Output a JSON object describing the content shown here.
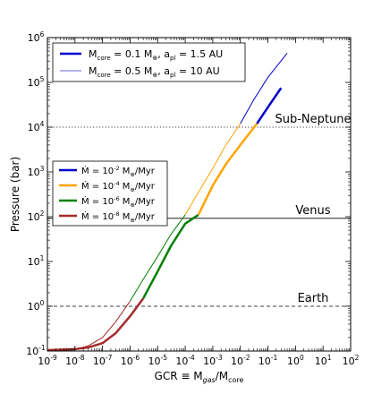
{
  "chart_data": {
    "type": "line",
    "xscale": "log",
    "yscale": "log",
    "xlim": [
      1e-09,
      100
    ],
    "ylim": [
      0.1,
      1000000
    ],
    "xlabel": {
      "main": "GCR ≡ M",
      "sub1": "gas",
      "sep": "/M",
      "sub2": "core"
    },
    "ylabel": "Pressure (bar)",
    "x_ticks": [
      {
        "value": 1e-09,
        "base": "10",
        "exp": "-9"
      },
      {
        "value": 1e-08,
        "base": "10",
        "exp": "-8"
      },
      {
        "value": 1e-07,
        "base": "10",
        "exp": "-7"
      },
      {
        "value": 1e-06,
        "base": "10",
        "exp": "-6"
      },
      {
        "value": 1e-05,
        "base": "10",
        "exp": "-5"
      },
      {
        "value": 0.0001,
        "base": "10",
        "exp": "-4"
      },
      {
        "value": 0.001,
        "base": "10",
        "exp": "-3"
      },
      {
        "value": 0.01,
        "base": "10",
        "exp": "-2"
      },
      {
        "value": 0.1,
        "base": "10",
        "exp": "-1"
      },
      {
        "value": 1,
        "base": "10",
        "exp": "0"
      },
      {
        "value": 10,
        "base": "10",
        "exp": "1"
      },
      {
        "value": 100,
        "base": "10",
        "exp": "2"
      }
    ],
    "y_ticks": [
      {
        "value": 0.1,
        "base": "10",
        "exp": "-1"
      },
      {
        "value": 1,
        "base": "10",
        "exp": "0"
      },
      {
        "value": 10,
        "base": "10",
        "exp": "1"
      },
      {
        "value": 100,
        "base": "10",
        "exp": "2"
      },
      {
        "value": 1000,
        "base": "10",
        "exp": "3"
      },
      {
        "value": 10000,
        "base": "10",
        "exp": "4"
      },
      {
        "value": 100000,
        "base": "10",
        "exp": "5"
      },
      {
        "value": 1000000,
        "base": "10",
        "exp": "6"
      }
    ],
    "reference_lines": [
      {
        "label": "Sub-Neptune",
        "y": 10000,
        "style": "dotted"
      },
      {
        "label": "Venus",
        "y": 92,
        "style": "solid"
      },
      {
        "label": "Earth",
        "y": 1,
        "style": "dashed"
      }
    ],
    "legend_core": {
      "placement": "top-left",
      "entries": [
        {
          "prefix": "M",
          "sub": "core",
          "text1": " = 0.1 M",
          "sym": "⊕",
          "text2": ", a",
          "sub2": "pl",
          "text3": " = 1.5 AU",
          "color": "#0000cc",
          "width": 2.5
        },
        {
          "prefix": "M",
          "sub": "core",
          "text1": " = 0.5 M",
          "sym": "⊕",
          "text2": ", a",
          "sub2": "pl",
          "text3": " = 10 AU",
          "color": "#6666e0",
          "width": 1
        }
      ]
    },
    "legend_mdot": {
      "placement": "center-left",
      "entries": [
        {
          "lead": "Ṁ = 10",
          "exp": "-2",
          "tail": " M",
          "sym": "⊕",
          "unit": "/Myr",
          "color": "#0000cc"
        },
        {
          "lead": "Ṁ = 10",
          "exp": "-4",
          "tail": " M",
          "sym": "⊕",
          "unit": "/Myr",
          "color": "#ffa500"
        },
        {
          "lead": "Ṁ = 10",
          "exp": "-6",
          "tail": " M",
          "sym": "⊕",
          "unit": "/Myr",
          "color": "#008000"
        },
        {
          "lead": "Ṁ = 10",
          "exp": "-8",
          "tail": " M",
          "sym": "⊕",
          "unit": "/Myr",
          "color": "#a52a2a"
        }
      ]
    },
    "series": [
      {
        "case": "core 0.1, 1.5 AU",
        "color": "#0000cc",
        "width": 2.5,
        "segments": [
          {
            "color": "#a52a2a",
            "points": [
              [
                1e-09,
                0.105
              ],
              [
                1e-08,
                0.11
              ],
              [
                3e-08,
                0.12
              ],
              [
                1e-07,
                0.15
              ],
              [
                3e-07,
                0.25
              ],
              [
                1e-06,
                0.6
              ],
              [
                3e-06,
                1.5
              ]
            ]
          },
          {
            "color": "#008000",
            "points": [
              [
                3e-06,
                1.5
              ],
              [
                1e-05,
                6
              ],
              [
                3e-05,
                22
              ],
              [
                0.0001,
                70
              ],
              [
                0.0003,
                110
              ]
            ]
          },
          {
            "color": "#ffa500",
            "points": [
              [
                0.0003,
                110
              ],
              [
                0.001,
                500
              ],
              [
                0.003,
                1500
              ],
              [
                0.01,
                4000
              ],
              [
                0.04,
                12000
              ]
            ]
          },
          {
            "color": "#0000cc",
            "points": [
              [
                0.04,
                12000
              ],
              [
                0.1,
                28000
              ],
              [
                0.3,
                75000
              ]
            ]
          }
        ]
      },
      {
        "case": "core 0.5, 10 AU",
        "color": "#6666e0",
        "width": 1,
        "segments": [
          {
            "color": "#a52a2a",
            "points": [
              [
                1e-09,
                0.1
              ],
              [
                1e-08,
                0.11
              ],
              [
                3e-08,
                0.13
              ],
              [
                1e-07,
                0.2
              ],
              [
                3e-07,
                0.45
              ],
              [
                1e-06,
                1.3
              ]
            ]
          },
          {
            "color": "#008000",
            "points": [
              [
                1e-06,
                1.3
              ],
              [
                3e-06,
                4
              ],
              [
                1e-05,
                13
              ],
              [
                3e-05,
                40
              ],
              [
                0.0001,
                110
              ]
            ]
          },
          {
            "color": "#ffa500",
            "points": [
              [
                0.0001,
                110
              ],
              [
                0.0003,
                350
              ],
              [
                0.001,
                1200
              ],
              [
                0.003,
                4000
              ],
              [
                0.01,
                12000
              ]
            ]
          },
          {
            "color": "#0000cc",
            "points": [
              [
                0.01,
                12000
              ],
              [
                0.03,
                40000
              ],
              [
                0.1,
                130000
              ],
              [
                0.5,
                450000
              ]
            ]
          }
        ]
      }
    ]
  }
}
